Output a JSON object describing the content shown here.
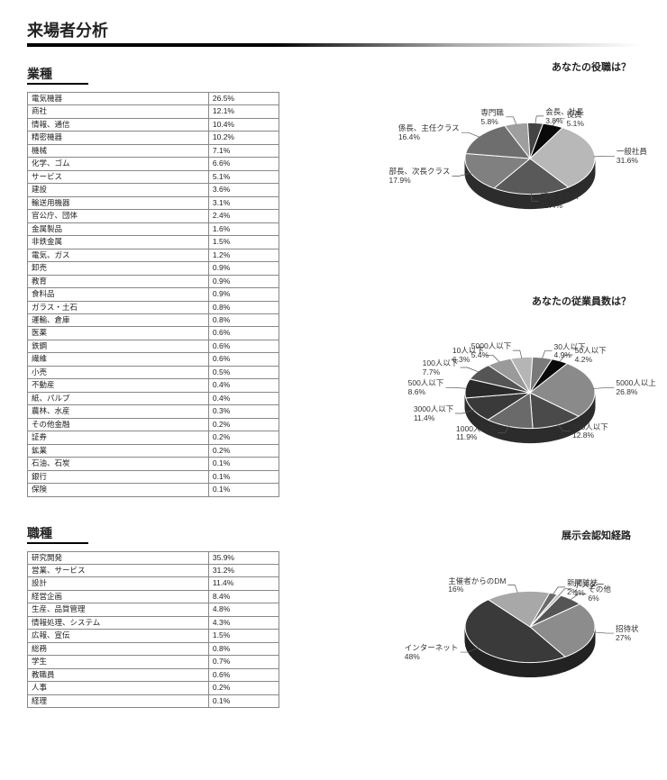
{
  "page_title": "来場者分析",
  "left": {
    "industry": {
      "heading": "業種",
      "rows": [
        [
          "電気機器",
          "26.5%"
        ],
        [
          "商社",
          "12.1%"
        ],
        [
          "情報、通信",
          "10.4%"
        ],
        [
          "精密機器",
          "10.2%"
        ],
        [
          "機械",
          "7.1%"
        ],
        [
          "化学、ゴム",
          "6.6%"
        ],
        [
          "サービス",
          "5.1%"
        ],
        [
          "建設",
          "3.6%"
        ],
        [
          "輸送用機器",
          "3.1%"
        ],
        [
          "官公庁、団体",
          "2.4%"
        ],
        [
          "金属製品",
          "1.6%"
        ],
        [
          "非鉄金属",
          "1.5%"
        ],
        [
          "電気、ガス",
          "1.2%"
        ],
        [
          "卸売",
          "0.9%"
        ],
        [
          "教育",
          "0.9%"
        ],
        [
          "食料品",
          "0.9%"
        ],
        [
          "ガラス・土石",
          "0.8%"
        ],
        [
          "運輸、倉庫",
          "0.8%"
        ],
        [
          "医薬",
          "0.6%"
        ],
        [
          "鉄鋼",
          "0.6%"
        ],
        [
          "繊維",
          "0.6%"
        ],
        [
          "小売",
          "0.5%"
        ],
        [
          "不動産",
          "0.4%"
        ],
        [
          "紙、パルプ",
          "0.4%"
        ],
        [
          "農林、水産",
          "0.3%"
        ],
        [
          "その他金融",
          "0.2%"
        ],
        [
          "証券",
          "0.2%"
        ],
        [
          "鉱業",
          "0.2%"
        ],
        [
          "石油、石炭",
          "0.1%"
        ],
        [
          "銀行",
          "0.1%"
        ],
        [
          "保険",
          "0.1%"
        ]
      ]
    },
    "occupation": {
      "heading": "職種",
      "rows": [
        [
          "研究開発",
          "35.9%"
        ],
        [
          "営業、サービス",
          "31.2%"
        ],
        [
          "設計",
          "11.4%"
        ],
        [
          "経営企画",
          "8.4%"
        ],
        [
          "生産、品質管理",
          "4.8%"
        ],
        [
          "情報処理、システム",
          "4.3%"
        ],
        [
          "広報、宣伝",
          "1.5%"
        ],
        [
          "総務",
          "0.8%"
        ],
        [
          "学生",
          "0.7%"
        ],
        [
          "教職員",
          "0.6%"
        ],
        [
          "人事",
          "0.2%"
        ],
        [
          "経理",
          "0.1%"
        ]
      ]
    }
  },
  "charts": {
    "role": {
      "title": "あなたの役職は？",
      "type": "pie",
      "slices": [
        {
          "label": "一般社員",
          "pct": 31.6,
          "color": "#b8b8b8"
        },
        {
          "label": "課長クラス",
          "pct": 19.4,
          "color": "#595959"
        },
        {
          "label": "部長、次長クラス",
          "pct": 17.9,
          "color": "#808080"
        },
        {
          "label": "係長、主任クラス",
          "pct": 16.4,
          "color": "#6e6e6e"
        },
        {
          "label": "専門職",
          "pct": 5.8,
          "color": "#9e9e9e"
        },
        {
          "label": "会長、社長",
          "pct": 3.8,
          "color": "#444444"
        },
        {
          "label": "役員",
          "pct": 5.1,
          "color": "#0a0a0a"
        }
      ],
      "depth_color": "#2c2c2c",
      "start_angle_deg": -60
    },
    "employees": {
      "title": "あなたの従業員数は？",
      "type": "pie",
      "slices": [
        {
          "label": "5000人以上",
          "pct": 26.8,
          "color": "#8a8a8a"
        },
        {
          "label": "300人以下",
          "pct": 12.8,
          "color": "#4a4a4a"
        },
        {
          "label": "1000人以下",
          "pct": 11.9,
          "color": "#6a6a6a"
        },
        {
          "label": "3000人以下",
          "pct": 11.4,
          "color": "#3a3a3a"
        },
        {
          "label": "500人以下",
          "pct": 8.6,
          "color": "#2a2a2a"
        },
        {
          "label": "100人以下",
          "pct": 7.7,
          "color": "#555555"
        },
        {
          "label": "10人以下",
          "pct": 6.3,
          "color": "#9a9a9a"
        },
        {
          "label": "5000人以下",
          "pct": 5.4,
          "color": "#b5b5b5"
        },
        {
          "label": "30人以下",
          "pct": 4.9,
          "color": "#7a7a7a"
        },
        {
          "label": "50人以下",
          "pct": 4.2,
          "color": "#0a0a0a"
        }
      ],
      "depth_color": "#2c2c2c",
      "start_angle_deg": -55
    },
    "awareness": {
      "title": "展示会認知経路",
      "type": "pie",
      "slices": [
        {
          "label": "招待状",
          "pct": 27,
          "color": "#8c8c8c"
        },
        {
          "label": "インターネット",
          "pct": 48,
          "color": "#3a3a3a"
        },
        {
          "label": "主催者からのDM",
          "pct": 16,
          "color": "#a8a8a8"
        },
        {
          "label": "新聞雑誌",
          "pct": 2,
          "color": "#6a6a6a"
        },
        {
          "label": "ポスター",
          "pct": 1,
          "color": "#c4c4c4"
        },
        {
          "label": "その他",
          "pct": 6,
          "color": "#555555"
        }
      ],
      "depth_color": "#222222",
      "start_angle_deg": -40
    }
  },
  "style": {
    "background": "#ffffff",
    "stroke": "#ffffff",
    "label_color": "#333333",
    "label_fontsize": 8.5,
    "pie_radius": 72,
    "pie_depth": 16
  }
}
